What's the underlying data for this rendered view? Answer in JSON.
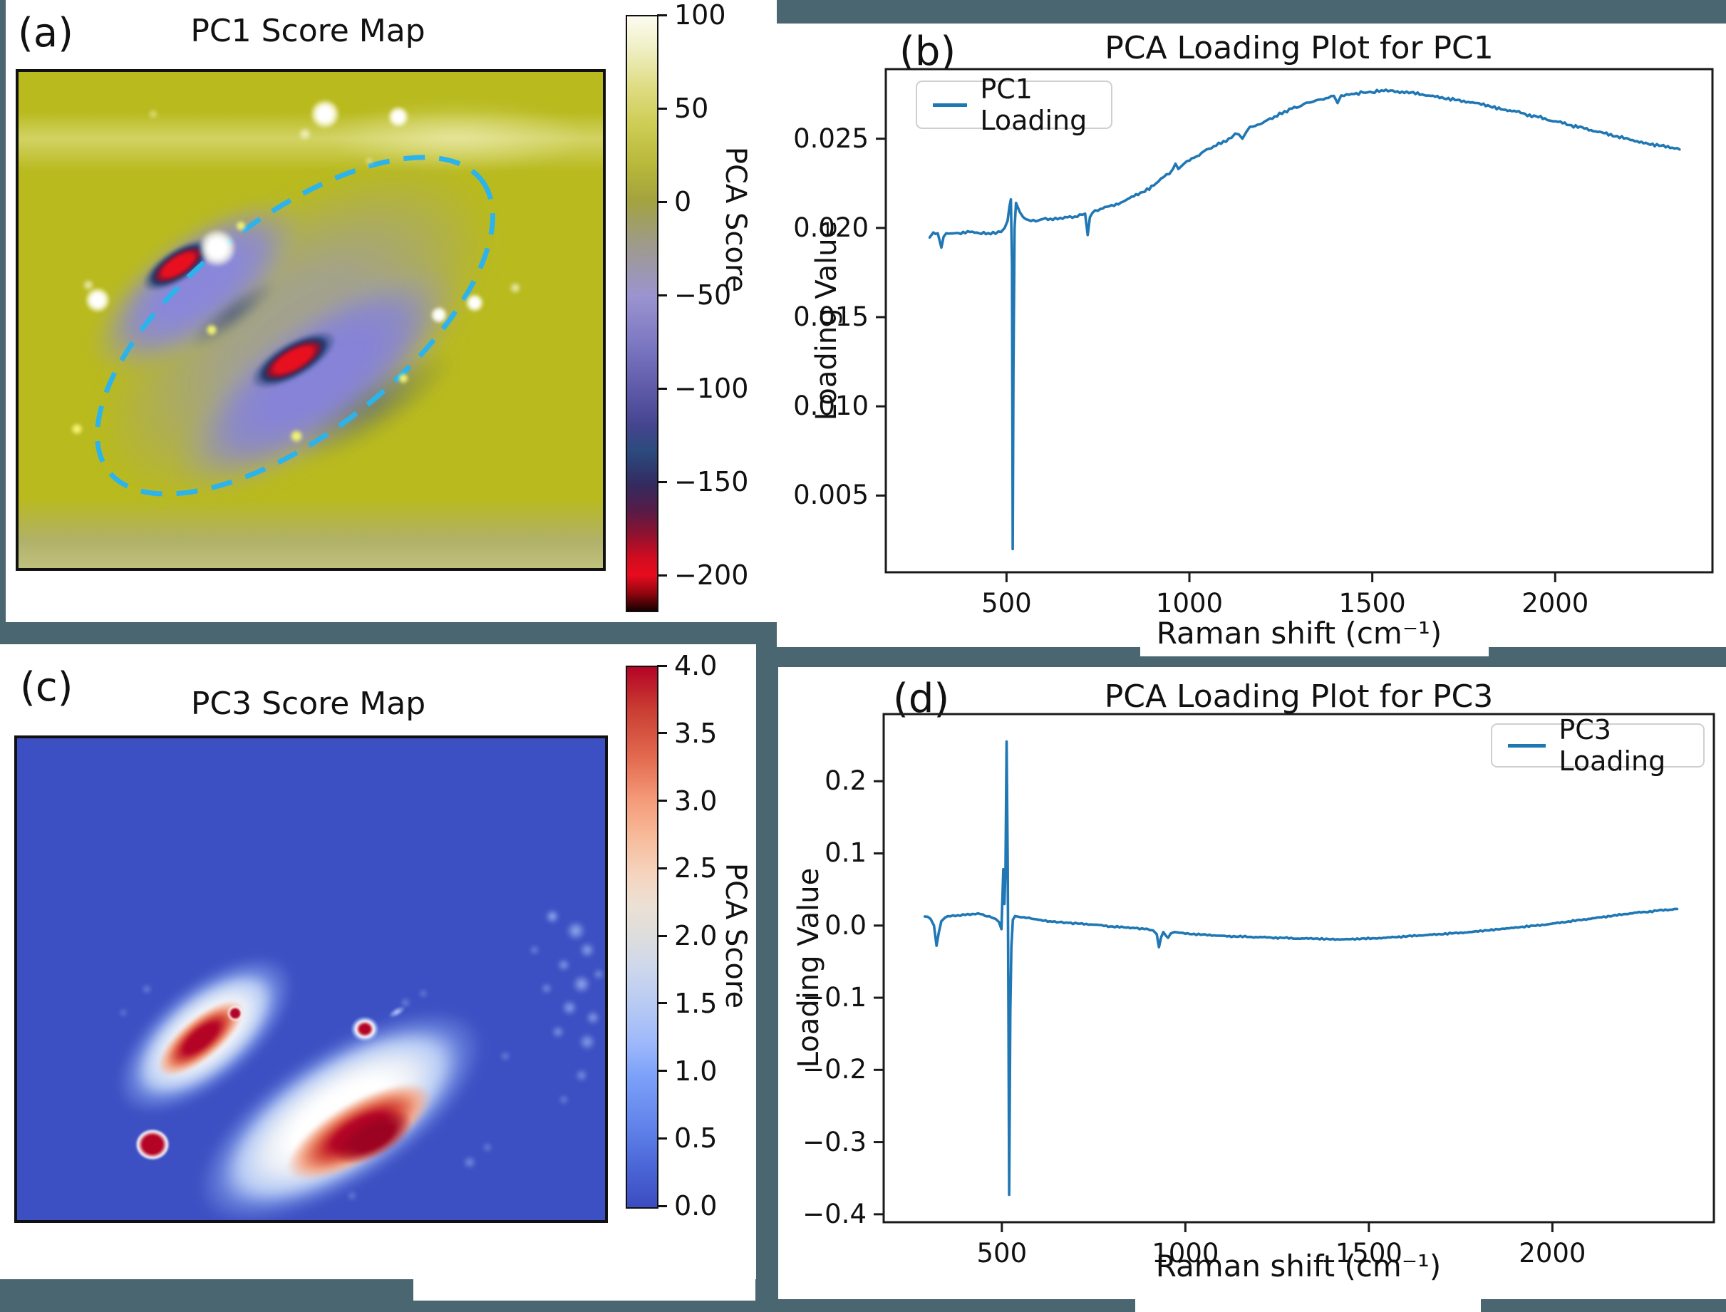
{
  "figure": {
    "background_color": "#4a6670",
    "line_color": "#1f77b4",
    "roi_ellipse_color": "#2db3ec",
    "panels": {
      "a": {
        "letter": "(a)",
        "title": "PC1 Score Map",
        "colorbar": {
          "label": "PCA Score",
          "ticks": [
            "100",
            "50",
            "0",
            "−50",
            "−100",
            "−150",
            "−200"
          ]
        }
      },
      "b": {
        "letter": "(b)",
        "title": "PCA Loading Plot for PC1",
        "legend": "PC1 Loading",
        "xlabel": "Raman shift (cm⁻¹)",
        "ylabel": "Loading Value",
        "xticks": [
          "500",
          "1000",
          "1500",
          "2000"
        ],
        "yticks": [
          "0.005",
          "0.010",
          "0.015",
          "0.020",
          "0.025"
        ]
      },
      "c": {
        "letter": "(c)",
        "title": "PC3 Score Map",
        "colorbar": {
          "label": "PCA Score",
          "ticks": [
            "4.0",
            "3.5",
            "3.0",
            "2.5",
            "2.0",
            "1.5",
            "1.0",
            "0.5",
            "0.0"
          ]
        }
      },
      "d": {
        "letter": "(d)",
        "title": "PCA Loading Plot for PC3",
        "legend": "PC3 Loading",
        "xlabel": "Raman shift (cm⁻¹)",
        "ylabel": "Loading Value",
        "xticks": [
          "500",
          "1000",
          "1500",
          "2000"
        ],
        "yticks": [
          "−0.4",
          "−0.3",
          "−0.2",
          "−0.1",
          "0.0",
          "0.1",
          "0.2"
        ]
      }
    }
  },
  "chart_data": [
    {
      "type": "heatmap",
      "panel": "a",
      "title": "PC1 Score Map",
      "colorbar_label": "PCA Score",
      "colorbar_ticks": [
        100,
        50,
        0,
        -50,
        -100,
        -150,
        -200
      ],
      "value_range": [
        -218,
        100
      ],
      "colormap": "yellow(high) to purple to red/black(low)",
      "annotations": [
        "dashed cyan ellipse marking low-score (blue/red) region"
      ]
    },
    {
      "type": "line",
      "panel": "b",
      "title": "PCA Loading Plot for PC1",
      "xlabel": "Raman shift (cm⁻¹)",
      "ylabel": "Loading Value",
      "xlim": [
        170,
        2430
      ],
      "ylim": [
        0.0007,
        0.0289
      ],
      "xticks": [
        500,
        1000,
        1500,
        2000
      ],
      "yticks": [
        0.005,
        0.01,
        0.015,
        0.02,
        0.025
      ],
      "grid": false,
      "legend_position": "upper left",
      "series": [
        {
          "name": "PC1 Loading",
          "color": "#1f77b4",
          "points": [
            [
              290,
              0.0195
            ],
            [
              300,
              0.0197
            ],
            [
              312,
              0.0197
            ],
            [
              322,
              0.0189
            ],
            [
              328,
              0.0195
            ],
            [
              335,
              0.0197
            ],
            [
              350,
              0.0197
            ],
            [
              375,
              0.0197
            ],
            [
              400,
              0.0198
            ],
            [
              425,
              0.0197
            ],
            [
              450,
              0.0197
            ],
            [
              470,
              0.0197
            ],
            [
              485,
              0.0198
            ],
            [
              495,
              0.02
            ],
            [
              503,
              0.0204
            ],
            [
              508,
              0.0212
            ],
            [
              512,
              0.0216
            ],
            [
              515,
              0.018
            ],
            [
              517,
              0.002
            ],
            [
              519,
              0.012
            ],
            [
              522,
              0.02
            ],
            [
              526,
              0.0214
            ],
            [
              530,
              0.0212
            ],
            [
              536,
              0.0209
            ],
            [
              545,
              0.0206
            ],
            [
              560,
              0.0204
            ],
            [
              580,
              0.0204
            ],
            [
              600,
              0.0205
            ],
            [
              620,
              0.0205
            ],
            [
              640,
              0.0205
            ],
            [
              660,
              0.0206
            ],
            [
              680,
              0.0206
            ],
            [
              700,
              0.0207
            ],
            [
              715,
              0.0208
            ],
            [
              722,
              0.0196
            ],
            [
              728,
              0.0206
            ],
            [
              735,
              0.0209
            ],
            [
              750,
              0.021
            ],
            [
              775,
              0.0212
            ],
            [
              800,
              0.0213
            ],
            [
              830,
              0.0216
            ],
            [
              860,
              0.0219
            ],
            [
              890,
              0.0222
            ],
            [
              915,
              0.0226
            ],
            [
              930,
              0.0229
            ],
            [
              945,
              0.0231
            ],
            [
              955,
              0.0233
            ],
            [
              962,
              0.0236
            ],
            [
              970,
              0.0233
            ],
            [
              985,
              0.0236
            ],
            [
              1000,
              0.0238
            ],
            [
              1020,
              0.024
            ],
            [
              1040,
              0.0243
            ],
            [
              1060,
              0.0245
            ],
            [
              1080,
              0.0247
            ],
            [
              1100,
              0.0249
            ],
            [
              1115,
              0.0251
            ],
            [
              1125,
              0.0253
            ],
            [
              1135,
              0.0252
            ],
            [
              1145,
              0.025
            ],
            [
              1155,
              0.0254
            ],
            [
              1165,
              0.0256
            ],
            [
              1180,
              0.0257
            ],
            [
              1200,
              0.0259
            ],
            [
              1220,
              0.0261
            ],
            [
              1240,
              0.0263
            ],
            [
              1260,
              0.0265
            ],
            [
              1280,
              0.0267
            ],
            [
              1300,
              0.0268
            ],
            [
              1320,
              0.027
            ],
            [
              1340,
              0.0271
            ],
            [
              1360,
              0.0272
            ],
            [
              1380,
              0.0273
            ],
            [
              1395,
              0.0274
            ],
            [
              1405,
              0.027
            ],
            [
              1415,
              0.0274
            ],
            [
              1430,
              0.0275
            ],
            [
              1450,
              0.0275
            ],
            [
              1475,
              0.0276
            ],
            [
              1500,
              0.0276
            ],
            [
              1525,
              0.0277
            ],
            [
              1550,
              0.0277
            ],
            [
              1575,
              0.0276
            ],
            [
              1600,
              0.0276
            ],
            [
              1630,
              0.0275
            ],
            [
              1660,
              0.0274
            ],
            [
              1690,
              0.0273
            ],
            [
              1720,
              0.0272
            ],
            [
              1750,
              0.0271
            ],
            [
              1780,
              0.027
            ],
            [
              1810,
              0.0269
            ],
            [
              1840,
              0.0267
            ],
            [
              1870,
              0.0266
            ],
            [
              1900,
              0.0265
            ],
            [
              1930,
              0.0263
            ],
            [
              1960,
              0.0262
            ],
            [
              1990,
              0.026
            ],
            [
              2020,
              0.0259
            ],
            [
              2050,
              0.0257
            ],
            [
              2080,
              0.0256
            ],
            [
              2110,
              0.0254
            ],
            [
              2140,
              0.0253
            ],
            [
              2170,
              0.0251
            ],
            [
              2200,
              0.025
            ],
            [
              2230,
              0.0248
            ],
            [
              2260,
              0.0247
            ],
            [
              2290,
              0.0246
            ],
            [
              2320,
              0.0245
            ],
            [
              2340,
              0.0244
            ]
          ]
        }
      ]
    },
    {
      "type": "heatmap",
      "panel": "c",
      "title": "PC3 Score Map",
      "colorbar_label": "PCA Score",
      "colorbar_ticks": [
        4.0,
        3.5,
        3.0,
        2.5,
        2.0,
        1.5,
        1.0,
        0.5,
        0.0
      ],
      "value_range": [
        0,
        4
      ],
      "colormap": "coolwarm (blue low, red high)"
    },
    {
      "type": "line",
      "panel": "d",
      "title": "PCA Loading Plot for PC3",
      "xlabel": "Raman shift (cm⁻¹)",
      "ylabel": "Loading Value",
      "xlim": [
        178,
        2440
      ],
      "ylim": [
        -0.411,
        0.293
      ],
      "xticks": [
        500,
        1000,
        1500,
        2000
      ],
      "yticks": [
        -0.4,
        -0.3,
        -0.2,
        -0.1,
        0.0,
        0.1,
        0.2
      ],
      "grid": false,
      "legend_position": "upper right",
      "series": [
        {
          "name": "PC3 Loading",
          "color": "#1f77b4",
          "points": [
            [
              290,
              0.013
            ],
            [
              298,
              0.012
            ],
            [
              306,
              0.009
            ],
            [
              315,
              0.0
            ],
            [
              322,
              -0.028
            ],
            [
              328,
              -0.01
            ],
            [
              335,
              0.006
            ],
            [
              345,
              0.011
            ],
            [
              360,
              0.013
            ],
            [
              380,
              0.014
            ],
            [
              400,
              0.015
            ],
            [
              420,
              0.016
            ],
            [
              435,
              0.017
            ],
            [
              448,
              0.015
            ],
            [
              460,
              0.013
            ],
            [
              472,
              0.012
            ],
            [
              483,
              0.01
            ],
            [
              492,
              0.005
            ],
            [
              499,
              -0.005
            ],
            [
              504,
              0.078
            ],
            [
              507,
              0.03
            ],
            [
              510,
              0.08
            ],
            [
              513,
              0.255
            ],
            [
              516,
              0.08
            ],
            [
              518,
              -0.12
            ],
            [
              520,
              -0.373
            ],
            [
              523,
              -0.12
            ],
            [
              526,
              -0.03
            ],
            [
              530,
              0.008
            ],
            [
              536,
              0.013
            ],
            [
              545,
              0.012
            ],
            [
              560,
              0.011
            ],
            [
              580,
              0.01
            ],
            [
              600,
              0.008
            ],
            [
              625,
              0.006
            ],
            [
              650,
              0.005
            ],
            [
              675,
              0.004
            ],
            [
              700,
              0.003
            ],
            [
              730,
              0.002
            ],
            [
              760,
              0.001
            ],
            [
              790,
              -0.001
            ],
            [
              820,
              -0.002
            ],
            [
              850,
              -0.003
            ],
            [
              875,
              -0.004
            ],
            [
              895,
              -0.005
            ],
            [
              912,
              -0.007
            ],
            [
              922,
              -0.012
            ],
            [
              928,
              -0.03
            ],
            [
              934,
              -0.016
            ],
            [
              940,
              -0.009
            ],
            [
              947,
              -0.014
            ],
            [
              953,
              -0.017
            ],
            [
              960,
              -0.01
            ],
            [
              970,
              -0.009
            ],
            [
              985,
              -0.01
            ],
            [
              1000,
              -0.011
            ],
            [
              1030,
              -0.012
            ],
            [
              1060,
              -0.013
            ],
            [
              1090,
              -0.014
            ],
            [
              1120,
              -0.015
            ],
            [
              1150,
              -0.015
            ],
            [
              1180,
              -0.016
            ],
            [
              1210,
              -0.016
            ],
            [
              1240,
              -0.017
            ],
            [
              1270,
              -0.017
            ],
            [
              1300,
              -0.018
            ],
            [
              1330,
              -0.018
            ],
            [
              1360,
              -0.018
            ],
            [
              1390,
              -0.019
            ],
            [
              1420,
              -0.019
            ],
            [
              1450,
              -0.019
            ],
            [
              1480,
              -0.018
            ],
            [
              1510,
              -0.018
            ],
            [
              1540,
              -0.017
            ],
            [
              1570,
              -0.016
            ],
            [
              1600,
              -0.015
            ],
            [
              1630,
              -0.014
            ],
            [
              1660,
              -0.013
            ],
            [
              1690,
              -0.012
            ],
            [
              1720,
              -0.011
            ],
            [
              1750,
              -0.01
            ],
            [
              1780,
              -0.009
            ],
            [
              1810,
              -0.007
            ],
            [
              1840,
              -0.006
            ],
            [
              1870,
              -0.004
            ],
            [
              1900,
              -0.003
            ],
            [
              1930,
              -0.001
            ],
            [
              1960,
              0.0
            ],
            [
              1990,
              0.002
            ],
            [
              2020,
              0.004
            ],
            [
              2050,
              0.006
            ],
            [
              2080,
              0.008
            ],
            [
              2110,
              0.01
            ],
            [
              2140,
              0.012
            ],
            [
              2170,
              0.014
            ],
            [
              2200,
              0.016
            ],
            [
              2230,
              0.018
            ],
            [
              2260,
              0.019
            ],
            [
              2290,
              0.021
            ],
            [
              2320,
              0.022
            ],
            [
              2340,
              0.023
            ]
          ]
        }
      ]
    }
  ]
}
